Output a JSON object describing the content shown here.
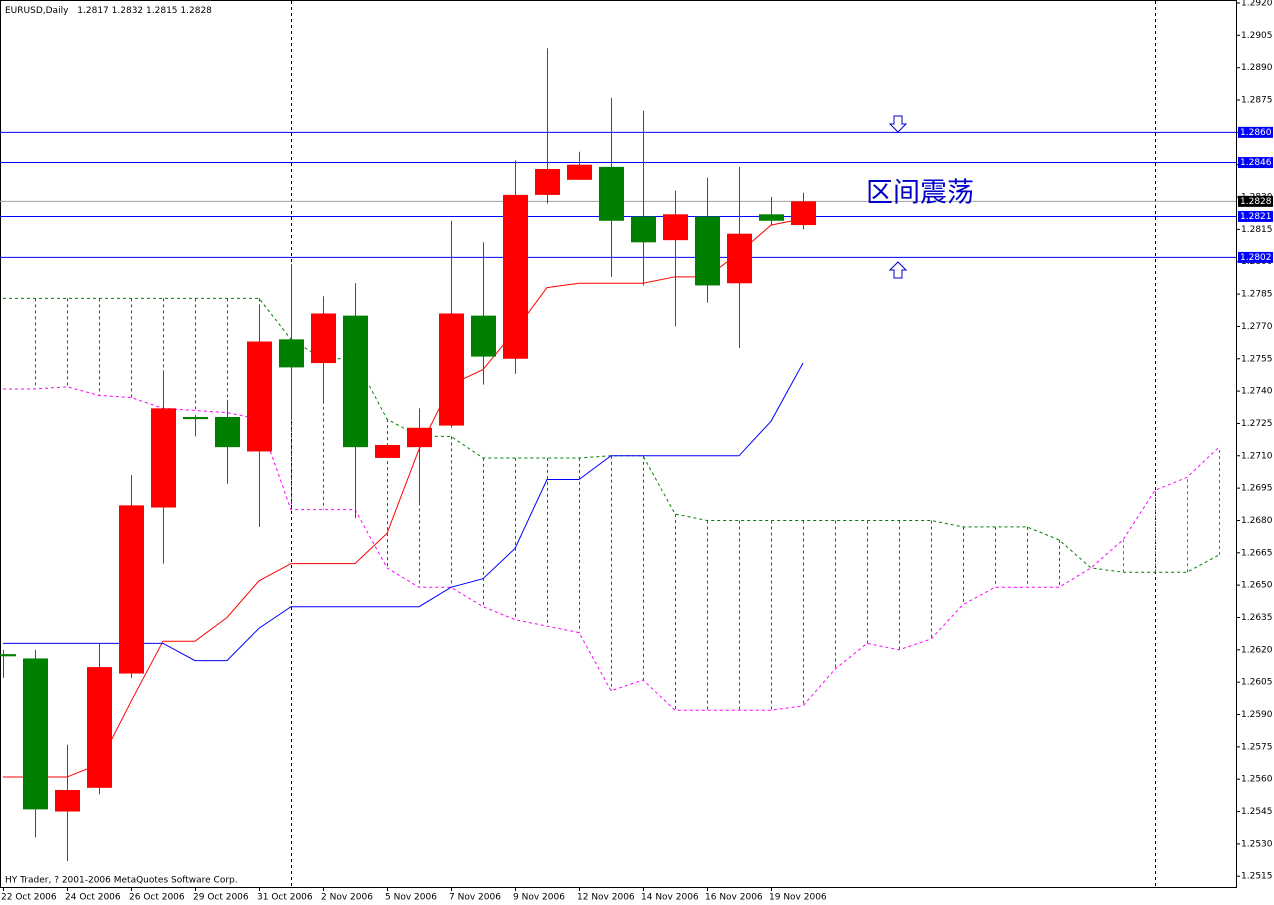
{
  "chart_data": {
    "type": "candlestick",
    "title": "EURUSD,Daily",
    "categories": [
      "22 Oct 2006",
      null,
      "24 Oct 2006",
      null,
      "26 Oct 2006",
      null,
      "29 Oct 2006",
      null,
      "31 Oct 2006",
      null,
      "2 Nov 2006",
      null,
      "5 Nov 2006",
      null,
      "7 Nov 2006",
      null,
      "9 Nov 2006",
      null,
      "12 Nov 2006",
      null,
      "14 Nov 2006",
      null,
      "16 Nov 2006",
      null,
      "19 Nov 2006",
      null,
      null,
      null,
      null,
      null,
      null,
      null,
      null,
      null,
      null,
      null,
      null,
      null,
      null
    ],
    "open": [
      1.2618,
      1.2616,
      1.2545,
      1.2556,
      1.2609,
      1.2686,
      1.2728,
      1.2728,
      1.2712,
      1.2764,
      1.2753,
      1.2775,
      1.2709,
      1.2714,
      1.2724,
      1.2775,
      1.2755,
      1.2831,
      1.2838,
      1.2844,
      1.2821,
      1.281,
      1.2821,
      1.279,
      1.2822,
      1.2817,
      null,
      null,
      null,
      null,
      null,
      null,
      null,
      null,
      null,
      null,
      null,
      null,
      null
    ],
    "high": [
      1.262,
      1.262,
      1.2576,
      1.2623,
      1.2701,
      1.2749,
      1.2729,
      1.2736,
      1.278,
      1.2799,
      1.2784,
      1.279,
      1.2715,
      1.2732,
      1.2819,
      1.2809,
      1.2847,
      1.2899,
      1.2851,
      1.2876,
      1.287,
      1.2833,
      1.2839,
      1.2844,
      1.283,
      1.2832,
      null,
      null,
      null,
      null,
      null,
      null,
      null,
      null,
      null,
      null,
      null,
      null,
      null
    ],
    "low": [
      1.2607,
      1.2533,
      1.2522,
      1.2553,
      1.2607,
      1.266,
      1.2719,
      1.2697,
      1.2677,
      1.2727,
      1.2735,
      1.2681,
      1.2709,
      1.2687,
      1.2723,
      1.2743,
      1.2748,
      1.2827,
      1.2838,
      1.2793,
      1.2789,
      1.277,
      1.2781,
      1.276,
      1.2817,
      1.2815,
      null,
      null,
      null,
      null,
      null,
      null,
      null,
      null,
      null,
      null,
      null,
      null,
      null
    ],
    "close": [
      1.2617,
      1.2546,
      1.2555,
      1.2612,
      1.2687,
      1.2732,
      1.2727,
      1.2714,
      1.2763,
      1.2751,
      1.2776,
      1.2714,
      1.2715,
      1.2723,
      1.2776,
      1.2756,
      1.2831,
      1.2843,
      1.2845,
      1.2819,
      1.2809,
      1.2822,
      1.2789,
      1.2813,
      1.2819,
      1.2828,
      null,
      null,
      null,
      null,
      null,
      null,
      null,
      null,
      null,
      null,
      null,
      null,
      null
    ],
    "up_color": "#ff0000",
    "down_color": "#008000",
    "lines": [
      {
        "color": "#ff0000",
        "dash": false,
        "values": [
          1.2561,
          1.2561,
          1.2561,
          1.2567,
          1.2596,
          1.2624,
          1.2624,
          1.2635,
          1.2652,
          1.266,
          1.266,
          1.266,
          1.2674,
          1.2713,
          1.2743,
          1.275,
          1.2768,
          1.2788,
          1.279,
          1.279,
          1.279,
          1.2793,
          1.2793,
          1.2804,
          1.2817,
          1.282,
          null,
          null,
          null,
          null,
          null,
          null,
          null,
          null,
          null,
          null,
          null,
          null,
          null
        ]
      },
      {
        "color": "#0000ff",
        "dash": false,
        "values": [
          1.2623,
          1.2623,
          1.2623,
          1.2623,
          1.2623,
          1.2623,
          1.2615,
          1.2615,
          1.263,
          1.264,
          1.264,
          1.264,
          1.264,
          1.264,
          1.2649,
          1.2653,
          1.2667,
          1.2699,
          1.2699,
          1.271,
          1.271,
          1.271,
          1.271,
          1.271,
          1.2726,
          1.2753,
          null,
          null,
          null,
          null,
          null,
          null,
          null,
          null,
          null,
          null,
          null,
          null,
          null
        ]
      },
      {
        "color": "#008000",
        "dash": true,
        "values": [
          1.2783,
          1.2783,
          1.2783,
          1.2783,
          1.2783,
          1.2783,
          1.2783,
          1.2783,
          1.2783,
          1.2764,
          1.2755,
          1.2755,
          1.2727,
          1.2719,
          1.2719,
          1.2709,
          1.2709,
          1.2709,
          1.2709,
          1.271,
          1.271,
          1.2683,
          1.268,
          1.268,
          1.268,
          1.268,
          1.268,
          1.268,
          1.268,
          1.268,
          1.2677,
          1.2677,
          1.2677,
          1.2671,
          1.2658,
          1.2656,
          1.2656,
          1.2656,
          1.2664
        ]
      },
      {
        "color": "#ff00ff",
        "dash": true,
        "values": [
          1.2741,
          1.2741,
          1.2742,
          1.2738,
          1.2737,
          1.2732,
          1.2731,
          1.273,
          1.2727,
          1.2685,
          1.2685,
          1.2685,
          1.2658,
          1.2649,
          1.2649,
          1.264,
          1.2634,
          1.2631,
          1.2628,
          1.2601,
          1.2606,
          1.2592,
          1.2592,
          1.2592,
          1.2592,
          1.2594,
          1.2611,
          1.2623,
          1.262,
          1.2625,
          1.2641,
          1.2649,
          1.2649,
          1.2649,
          1.2658,
          1.2671,
          1.2694,
          1.27,
          1.2714
        ]
      }
    ],
    "cloud": true,
    "ylim": [
      1.251,
      1.292
    ],
    "yticks": [
      {
        "value": 1.292,
        "label": "1.2920"
      },
      1.2905,
      {
        "value": 1.289,
        "label": "1.2890"
      },
      1.2875,
      {
        "value": 1.286,
        "label": "1.2860"
      },
      1.2845,
      {
        "value": 1.283,
        "label": "1.2830"
      },
      1.2815,
      {
        "value": 1.28,
        "label": "1.2800"
      },
      1.2785,
      {
        "value": 1.277,
        "label": "1.2770"
      },
      1.2755,
      {
        "value": 1.274,
        "label": "1.2740"
      },
      1.2725,
      {
        "value": 1.271,
        "label": "1.2710"
      },
      1.2695,
      {
        "value": 1.268,
        "label": "1.2680"
      },
      1.2665,
      {
        "value": 1.265,
        "label": "1.2650"
      },
      1.2635,
      {
        "value": 1.262,
        "label": "1.2620"
      },
      1.2605,
      {
        "value": 1.259,
        "label": "1.2590"
      },
      1.2575,
      {
        "value": 1.256,
        "label": "1.2560"
      },
      1.2545,
      {
        "value": 1.253,
        "label": "1.2530"
      },
      1.2515
    ],
    "levels": [
      {
        "value": 1.286,
        "label": "1.2860"
      },
      1.2846,
      1.2821,
      1.2802
    ],
    "level_color": "#0000ff",
    "price_line": 1.2828,
    "price_line_color": "#a0a0a0",
    "annotation": "区间震荡",
    "footer": "HY Trader, ? 2001-2006 MetaQuotes Software Corp."
  }
}
